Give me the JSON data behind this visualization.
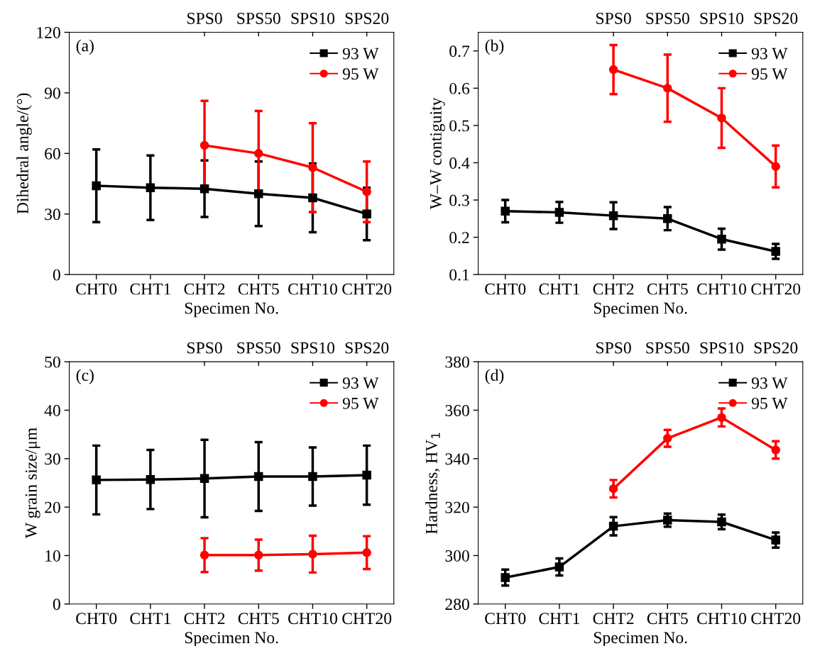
{
  "chart_data": [
    {
      "type": "line",
      "xlabel": "Specimen No.",
      "ylabel": "Dihedral angle/(°)",
      "annotations": [
        "(a)",
        {
          "text": "SPS0",
          "x": "CHT2"
        },
        {
          "text": "SPS50",
          "x": "CHT5"
        },
        {
          "text": "SPS10",
          "x": "CHT10"
        },
        {
          "text": "SPS20",
          "x": "CHT20"
        }
      ],
      "categories": [
        "CHT0",
        "CHT1",
        "CHT2",
        "CHT5",
        "CHT10",
        "CHT20"
      ],
      "ylim": [
        0,
        120
      ],
      "yticks": [
        0,
        30,
        60,
        90,
        120
      ],
      "legend": "top right",
      "grid": false,
      "line_style": "solid",
      "series": [
        {
          "name": "93 W",
          "color": "#000000",
          "marker": "square",
          "values": [
            44,
            43,
            42.5,
            40,
            38,
            30
          ],
          "errors": [
            18,
            16,
            14,
            16,
            17,
            13
          ]
        },
        {
          "name": "95 W",
          "color": "#ff0000",
          "marker": "circle",
          "values": [
            null,
            null,
            64,
            60,
            53,
            41
          ],
          "errors": [
            null,
            null,
            22,
            21,
            22,
            15
          ]
        }
      ]
    },
    {
      "type": "line",
      "xlabel": "Specimen No.",
      "ylabel": "W–W contiguity",
      "annotations": [
        "(b)",
        {
          "text": "SPS0",
          "x": "CHT2"
        },
        {
          "text": "SPS50",
          "x": "CHT5"
        },
        {
          "text": "SPS10",
          "x": "CHT10"
        },
        {
          "text": "SPS20",
          "x": "CHT20"
        }
      ],
      "categories": [
        "CHT0",
        "CHT1",
        "CHT2",
        "CHT5",
        "CHT10",
        "CHT20"
      ],
      "ylim": [
        0.1,
        0.75
      ],
      "yticks": [
        0.1,
        0.2,
        0.3,
        0.4,
        0.5,
        0.6,
        0.7
      ],
      "legend": "top right",
      "grid": false,
      "line_style": "solid",
      "series": [
        {
          "name": "93 W",
          "color": "#000000",
          "marker": "square",
          "values": [
            0.27,
            0.267,
            0.258,
            0.25,
            0.195,
            0.162
          ],
          "errors": [
            0.03,
            0.028,
            0.036,
            0.031,
            0.028,
            0.02
          ]
        },
        {
          "name": "95 W",
          "color": "#ff0000",
          "marker": "circle",
          "values": [
            null,
            null,
            0.65,
            0.6,
            0.52,
            0.39
          ],
          "errors": [
            null,
            null,
            0.066,
            0.09,
            0.08,
            0.056
          ]
        }
      ]
    },
    {
      "type": "line",
      "xlabel": "Specimen No.",
      "ylabel": "W grain size/μm",
      "annotations": [
        "(c)",
        {
          "text": "SPS0",
          "x": "CHT2"
        },
        {
          "text": "SPS50",
          "x": "CHT5"
        },
        {
          "text": "SPS10",
          "x": "CHT10"
        },
        {
          "text": "SPS20",
          "x": "CHT20"
        }
      ],
      "categories": [
        "CHT0",
        "CHT1",
        "CHT2",
        "CHT5",
        "CHT10",
        "CHT20"
      ],
      "ylim": [
        0,
        50
      ],
      "yticks": [
        0,
        10,
        20,
        30,
        40,
        50
      ],
      "legend": "top right",
      "grid": false,
      "line_style": "solid",
      "series": [
        {
          "name": "93 W",
          "color": "#000000",
          "marker": "square",
          "values": [
            25.6,
            25.7,
            25.9,
            26.3,
            26.3,
            26.6
          ],
          "errors": [
            7.1,
            6.1,
            8.0,
            7.1,
            6.0,
            6.1
          ]
        },
        {
          "name": "95 W",
          "color": "#ff0000",
          "marker": "circle",
          "values": [
            null,
            null,
            10.1,
            10.1,
            10.3,
            10.6
          ],
          "errors": [
            null,
            null,
            3.5,
            3.2,
            3.8,
            3.4
          ]
        }
      ]
    },
    {
      "type": "line",
      "xlabel": "Specimen No.",
      "ylabel": "Hardness, HV$_{1}$",
      "annotations": [
        "(d)",
        {
          "text": "SPS0",
          "x": "CHT2"
        },
        {
          "text": "SPS50",
          "x": "CHT5"
        },
        {
          "text": "SPS10",
          "x": "CHT10"
        },
        {
          "text": "SPS20",
          "x": "CHT20"
        }
      ],
      "categories": [
        "CHT0",
        "CHT1",
        "CHT2",
        "CHT5",
        "CHT10",
        "CHT20"
      ],
      "ylim": [
        280,
        380
      ],
      "yticks": [
        280,
        300,
        320,
        340,
        360,
        380
      ],
      "legend": "top right",
      "grid": false,
      "line_style": "solid",
      "series": [
        {
          "name": "93 W",
          "color": "#000000",
          "marker": "square",
          "values": [
            290.9,
            295.3,
            312.1,
            314.6,
            313.9,
            306.4
          ],
          "errors": [
            3.3,
            3.5,
            3.8,
            2.7,
            3.0,
            3.1
          ]
        },
        {
          "name": "95 W",
          "color": "#ff0000",
          "marker": "circle",
          "values": [
            null,
            null,
            327.6,
            348.4,
            357.0,
            343.6
          ],
          "errors": [
            null,
            null,
            3.6,
            3.5,
            3.7,
            3.6
          ]
        }
      ]
    }
  ]
}
